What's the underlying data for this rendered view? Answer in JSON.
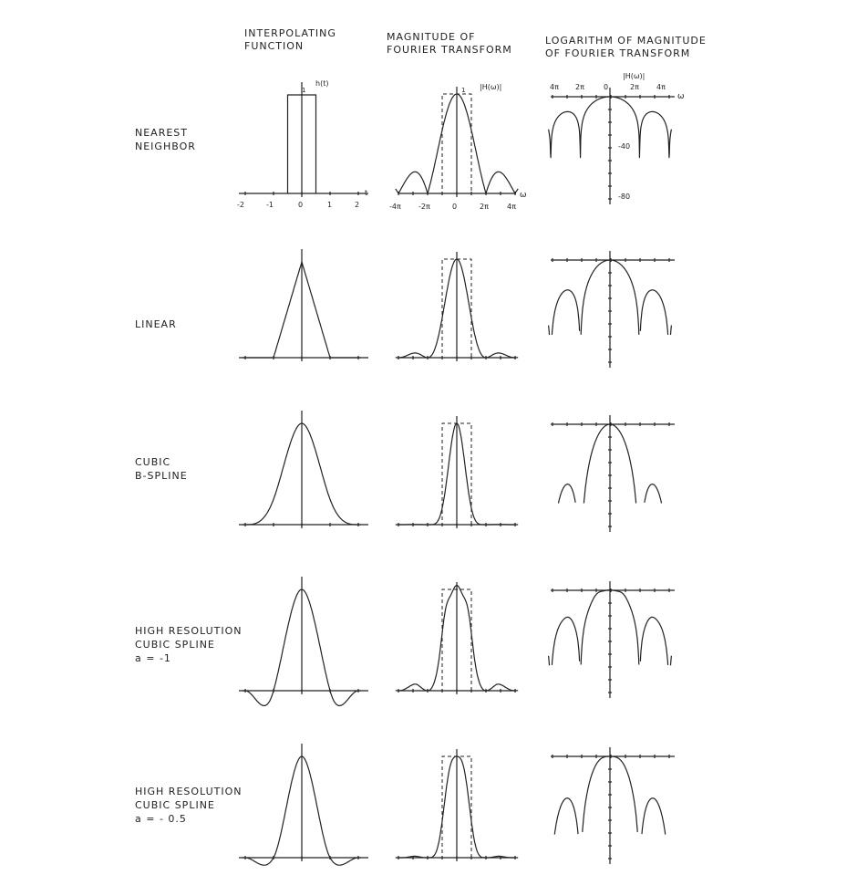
{
  "headers": {
    "col1_line1": "INTERPOLATING",
    "col1_line2": "FUNCTION",
    "col2_line1": "MAGNITUDE OF",
    "col2_line2": "FOURIER TRANSFORM",
    "col3_line1": "LOGARITHM OF MAGNITUDE",
    "col3_line2": "OF FOURIER TRANSFORM"
  },
  "rows": [
    {
      "line1": "NEAREST",
      "line2": "NEIGHBOR",
      "line3": ""
    },
    {
      "line1": "LINEAR",
      "line2": "",
      "line3": ""
    },
    {
      "line1": "CUBIC",
      "line2": "B-SPLINE",
      "line3": ""
    },
    {
      "line1": "HIGH RESOLUTION",
      "line2": "CUBIC SPLINE",
      "line3": "a = -1"
    },
    {
      "line1": "HIGH RESOLUTION",
      "line2": "CUBIC SPLINE",
      "line3": "a = - 0.5"
    }
  ],
  "axis_labels": {
    "h_of_t": "h(t)",
    "t": "t",
    "one_a": "1",
    "one_b": "1",
    "H_abs": "|H(ω)|",
    "H_abs_log": "|H(ω)|",
    "omega": "ω",
    "omega_log": "ω",
    "t_ticks": [
      "-2",
      "-1",
      "0",
      "1",
      "2"
    ],
    "w_ticks": [
      "-4π",
      "-2π",
      "0",
      "2π",
      "4π"
    ],
    "log_top_ticks": [
      "4π",
      "2π",
      "0",
      "2π",
      "4π"
    ],
    "log_y_ticks": [
      "-40",
      "-80"
    ]
  }
}
